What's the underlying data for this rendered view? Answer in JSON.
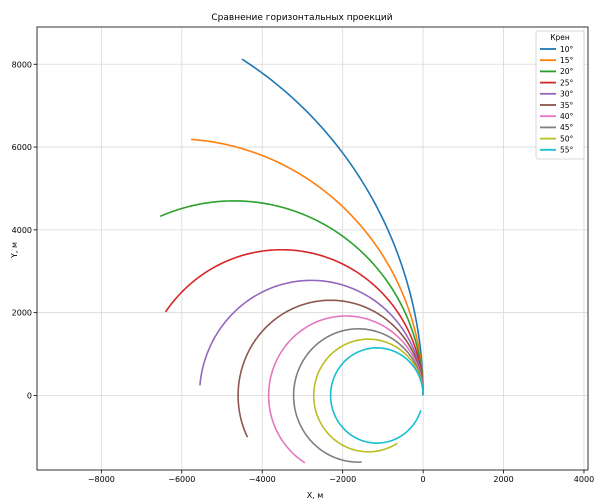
{
  "chart_data": {
    "type": "line",
    "title": "Сравнение горизонтальных проекций",
    "xlabel": "X, м",
    "ylabel": "Y, м",
    "xlim": [
      -9600,
      4100
    ],
    "ylim": [
      -1800,
      8900
    ],
    "xticks": [
      -8000,
      -6000,
      -4000,
      -2000,
      0,
      2000,
      4000
    ],
    "yticks": [
      0,
      2000,
      4000,
      6000,
      8000
    ],
    "grid": true,
    "legend": {
      "title": "Крен",
      "placement": "top-right"
    },
    "series": [
      {
        "name": "10°",
        "color": "#1f77b4",
        "radius": 9580,
        "sweep_deg": 58
      },
      {
        "name": "15°",
        "color": "#ff7f0e",
        "radius": 6200,
        "sweep_deg": 86
      },
      {
        "name": "20°",
        "color": "#2ca02c",
        "radius": 4700,
        "sweep_deg": 113
      },
      {
        "name": "25°",
        "color": "#d62728",
        "radius": 3520,
        "sweep_deg": 145
      },
      {
        "name": "30°",
        "color": "#9467bd",
        "radius": 2780,
        "sweep_deg": 175
      },
      {
        "name": "35°",
        "color": "#8c564b",
        "radius": 2300,
        "sweep_deg": 206
      },
      {
        "name": "40°",
        "color": "#e377c2",
        "radius": 1920,
        "sweep_deg": 238
      },
      {
        "name": "45°",
        "color": "#7f7f7f",
        "radius": 1610,
        "sweep_deg": 273
      },
      {
        "name": "50°",
        "color": "#bcbd22",
        "radius": 1360,
        "sweep_deg": 302
      },
      {
        "name": "55°",
        "color": "#17becf",
        "radius": 1150,
        "sweep_deg": 342
      }
    ]
  }
}
